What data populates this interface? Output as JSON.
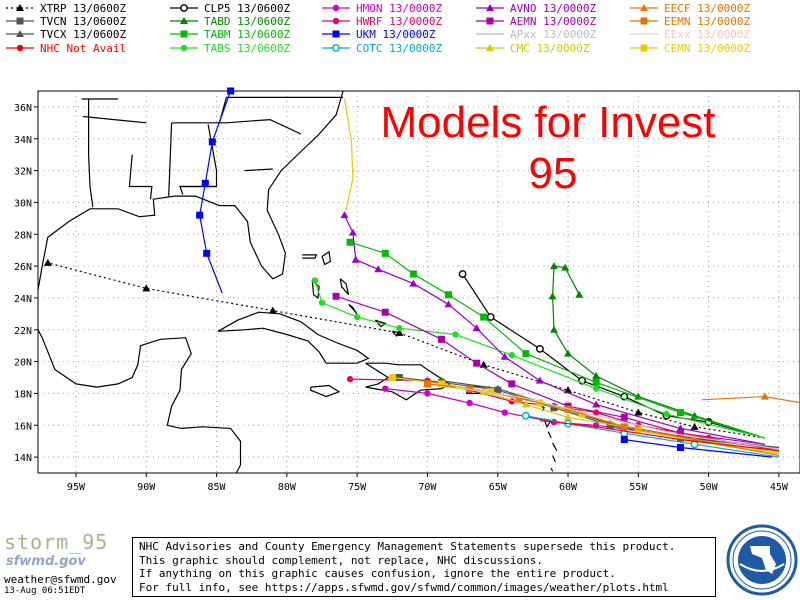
{
  "title_line1": "Models for Invest",
  "title_line2": "95",
  "legend": [
    {
      "label": "XTRP  13/0600Z",
      "color": "#000000",
      "dash": "2,3",
      "marker": "triangle"
    },
    {
      "label": "CLP5  13/0600Z",
      "color": "#000000",
      "dash": "",
      "marker": "ring"
    },
    {
      "label": "HMON  13/0000Z",
      "color": "#cc00cc",
      "dash": "",
      "marker": "circle"
    },
    {
      "label": "AVNO  13/0000Z",
      "color": "#9900cc",
      "dash": "",
      "marker": "triangle"
    },
    {
      "label": "EECF  13/0000Z",
      "color": "#e87400",
      "dash": "",
      "marker": "triangle"
    },
    {
      "label": "TVCN  13/0600Z",
      "color": "#555555",
      "dash": "",
      "marker": "square"
    },
    {
      "label": "TABD  13/0600Z",
      "color": "#008800",
      "dash": "",
      "marker": "triangle"
    },
    {
      "label": "HWRF  13/0000Z",
      "color": "#ee0066",
      "dash": "",
      "marker": "circle"
    },
    {
      "label": "AEMN  13/0000Z",
      "color": "#aa00aa",
      "dash": "",
      "marker": "square"
    },
    {
      "label": "EEMN  13/0000Z",
      "color": "#e87400",
      "dash": "",
      "marker": "square"
    },
    {
      "label": "TVCX  13/0600Z",
      "color": "#555555",
      "dash": "",
      "marker": "triangle"
    },
    {
      "label": "TABM  13/0600Z",
      "color": "#00bb00",
      "dash": "",
      "marker": "square"
    },
    {
      "label": "UKM   13/0000Z",
      "color": "#0000ff",
      "dash": "",
      "marker": "square"
    },
    {
      "label": "APxx  13/0000Z",
      "color": "#bbbbbb",
      "dash": "",
      "marker": "none"
    },
    {
      "label": "EExx  13/0000Z",
      "color": "#f5c6c6",
      "dash": "",
      "marker": "none"
    },
    {
      "label": "NHC Not Avail",
      "color": "#ff0000",
      "dash": "",
      "marker": "circle"
    },
    {
      "label": "TABS  13/0600Z",
      "color": "#22dd22",
      "dash": "",
      "marker": "circle"
    },
    {
      "label": "COTC  13/0000Z",
      "color": "#00aacc",
      "dash": "",
      "marker": "ring"
    },
    {
      "label": "CMC   13/0000Z",
      "color": "#cccc00",
      "dash": "",
      "marker": "triangle"
    },
    {
      "label": "CEMN  13/0000Z",
      "color": "#eecc00",
      "dash": "",
      "marker": "square"
    }
  ],
  "axes": {
    "lat_labels": [
      "14N",
      "16N",
      "18N",
      "20N",
      "22N",
      "24N",
      "26N",
      "28N",
      "30N",
      "32N",
      "34N",
      "36N"
    ],
    "lat_values": [
      14,
      16,
      18,
      20,
      22,
      24,
      26,
      28,
      30,
      32,
      34,
      36
    ],
    "lon_labels": [
      "95W",
      "90W",
      "85W",
      "80W",
      "75W",
      "70W",
      "65W",
      "60W",
      "55W",
      "50W",
      "45W"
    ],
    "lon_values": [
      -95,
      -90,
      -85,
      -80,
      -75,
      -70,
      -65,
      -60,
      -55,
      -50,
      -45
    ],
    "lat_range": [
      13,
      37
    ],
    "lon_range": [
      -97.7,
      -43.5
    ]
  },
  "tracks": [
    {
      "name": "XTRP",
      "color": "#000000",
      "dash": "2,3",
      "marker": "triangle",
      "points": [
        [
          -46,
          15.2
        ],
        [
          -51,
          15.9
        ],
        [
          -55,
          16.8
        ],
        [
          -60,
          18.2
        ],
        [
          -66,
          19.8
        ],
        [
          -72,
          21.8
        ],
        [
          -81,
          23.2
        ],
        [
          -90,
          24.6
        ],
        [
          -97,
          26.2
        ]
      ]
    },
    {
      "name": "CLP5",
      "color": "#000000",
      "dash": "",
      "marker": "ring",
      "points": [
        [
          -46,
          15.2
        ],
        [
          -50,
          16.2
        ],
        [
          -53,
          16.6
        ],
        [
          -56,
          17.8
        ],
        [
          -59,
          18.8
        ],
        [
          -62,
          20.8
        ],
        [
          -65.5,
          22.8
        ],
        [
          -67.5,
          25.5
        ]
      ]
    },
    {
      "name": "TABD",
      "color": "#008800",
      "dash": "",
      "marker": "triangle",
      "points": [
        [
          -46,
          15.2
        ],
        [
          -51,
          16.6
        ],
        [
          -55,
          17.8
        ],
        [
          -58,
          19.1
        ],
        [
          -60,
          20.5
        ],
        [
          -61,
          22
        ],
        [
          -61.1,
          24.1
        ],
        [
          -61,
          26
        ],
        [
          -60.2,
          25.9
        ],
        [
          -59.2,
          24.2
        ]
      ]
    },
    {
      "name": "TABM",
      "color": "#00bb00",
      "dash": "",
      "marker": "square",
      "points": [
        [
          -46,
          15.2
        ],
        [
          -52,
          16.8
        ],
        [
          -58,
          18.7
        ],
        [
          -63,
          20.5
        ],
        [
          -66,
          22.8
        ],
        [
          -68.5,
          24.2
        ],
        [
          -71,
          25.5
        ],
        [
          -73,
          26.8
        ],
        [
          -75.5,
          27.5
        ]
      ]
    },
    {
      "name": "TABS",
      "color": "#22dd22",
      "dash": "",
      "marker": "circle",
      "points": [
        [
          -46,
          15.2
        ],
        [
          -53,
          16.7
        ],
        [
          -58,
          18.3
        ],
        [
          -64,
          20.4
        ],
        [
          -68,
          21.7
        ],
        [
          -72,
          22.1
        ],
        [
          -75,
          22.8
        ],
        [
          -77.5,
          23.7
        ],
        [
          -78,
          25.1
        ]
      ]
    },
    {
      "name": "AVNO",
      "color": "#9900cc",
      "dash": "",
      "marker": "triangle",
      "points": [
        [
          -46,
          14.8
        ],
        [
          -52,
          15.8
        ],
        [
          -58,
          17.3
        ],
        [
          -62,
          18.8
        ],
        [
          -64.5,
          20.3
        ],
        [
          -66.5,
          22.1
        ],
        [
          -68.5,
          23.6
        ],
        [
          -71,
          24.9
        ],
        [
          -73.5,
          25.8
        ],
        [
          -75.1,
          26.4
        ],
        [
          -75.3,
          28.1
        ],
        [
          -75.9,
          29.2
        ]
      ]
    },
    {
      "name": "AEMN",
      "color": "#aa00aa",
      "dash": "",
      "marker": "square",
      "points": [
        [
          -46,
          14.8
        ],
        [
          -52,
          15.5
        ],
        [
          -56,
          16.5
        ],
        [
          -60,
          17.2
        ],
        [
          -64,
          18.6
        ],
        [
          -66.5,
          19.9
        ],
        [
          -69,
          21.4
        ],
        [
          -73,
          23.1
        ],
        [
          -76.5,
          24.1
        ]
      ]
    },
    {
      "name": "HWRF",
      "color": "#ee0066",
      "dash": "",
      "marker": "circle",
      "points": [
        [
          -45,
          14.4
        ],
        [
          -50,
          15.2
        ],
        [
          -55,
          16
        ],
        [
          -58,
          16.8
        ],
        [
          -61,
          17.2
        ],
        [
          -64,
          17.5
        ],
        [
          -67,
          18.2
        ],
        [
          -70,
          18.8
        ],
        [
          -75.5,
          18.9
        ]
      ]
    },
    {
      "name": "HMON",
      "color": "#cc00cc",
      "dash": "",
      "marker": "circle",
      "points": [
        [
          -45,
          14.5
        ],
        [
          -52,
          15.3
        ],
        [
          -58,
          16
        ],
        [
          -61,
          16.2
        ],
        [
          -64.5,
          16.8
        ],
        [
          -67,
          17.4
        ],
        [
          -70,
          18
        ],
        [
          -73,
          18.3
        ]
      ]
    },
    {
      "name": "TVCN",
      "color": "#555555",
      "dash": "",
      "marker": "square",
      "points": [
        [
          -45,
          14.6
        ],
        [
          -52,
          15.2
        ],
        [
          -57,
          16
        ],
        [
          -61,
          17.1
        ],
        [
          -65,
          18.2
        ],
        [
          -69,
          18.7
        ],
        [
          -72,
          19
        ]
      ]
    },
    {
      "name": "TVCX",
      "color": "#555555",
      "dash": "",
      "marker": "triangle",
      "points": [
        [
          -45,
          14.6
        ],
        [
          -52,
          15.3
        ],
        [
          -57,
          16.1
        ],
        [
          -61,
          17.2
        ],
        [
          -65,
          18.3
        ],
        [
          -69,
          18.8
        ]
      ]
    },
    {
      "name": "CMC",
      "color": "#cccc00",
      "dash": "",
      "marker": "triangle",
      "points": [
        [
          -45,
          14.3
        ],
        [
          -51,
          15.1
        ],
        [
          -56,
          15.9
        ],
        [
          -60,
          16.5
        ],
        [
          -63,
          17.3
        ],
        [
          -66,
          18.1
        ],
        [
          -70,
          18.6
        ]
      ]
    },
    {
      "name": "CEMN",
      "color": "#eecc00",
      "dash": "",
      "marker": "square",
      "points": [
        [
          -45,
          14.2
        ],
        [
          -51,
          15
        ],
        [
          -55,
          15.7
        ],
        [
          -59,
          16.7
        ],
        [
          -62,
          17.4
        ],
        [
          -65.5,
          18.1
        ],
        [
          -69,
          18.6
        ],
        [
          -72.5,
          19
        ]
      ]
    },
    {
      "name": "EEMN",
      "color": "#e87400",
      "dash": "",
      "marker": "square",
      "points": [
        [
          -45,
          14.1
        ],
        [
          -51,
          15.1
        ],
        [
          -56,
          15.9
        ],
        [
          -60,
          17
        ],
        [
          -63.5,
          17.7
        ],
        [
          -67,
          18.3
        ],
        [
          -70,
          18.6
        ]
      ]
    },
    {
      "name": "COTC",
      "color": "#00aacc",
      "dash": "",
      "marker": "ring",
      "points": [
        [
          -45,
          14
        ],
        [
          -51,
          14.8
        ],
        [
          -56,
          15.5
        ],
        [
          -60,
          16.1
        ],
        [
          -63,
          16.6
        ]
      ]
    },
    {
      "name": "UKM",
      "color": "#0000ff",
      "dash": "",
      "marker": "square",
      "points": [
        [
          -45.5,
          14
        ],
        [
          -52,
          14.6
        ],
        [
          -56,
          15.1
        ]
      ]
    },
    {
      "name": "UKM-north",
      "color": "#0000ff",
      "dash": "",
      "marker": "square",
      "points": [
        [
          -84.6,
          24.3
        ],
        [
          -85.7,
          26.8
        ],
        [
          -86.2,
          29.2
        ],
        [
          -85.8,
          31.2
        ],
        [
          -85.3,
          33.8
        ],
        [
          -84,
          37
        ]
      ]
    },
    {
      "name": "EECF",
      "color": "#e87400",
      "dash": "",
      "marker": "triangle",
      "points": [
        [
          -50.5,
          17.6
        ],
        [
          -46,
          17.8
        ],
        [
          -42,
          17.2
        ]
      ]
    },
    {
      "name": "APxx",
      "color": "#cccccc",
      "dash": "",
      "marker": "none",
      "points": [
        [
          -45,
          14.5
        ],
        [
          -52,
          15.4
        ],
        [
          -58,
          16.6
        ],
        [
          -63,
          17.7
        ],
        [
          -68,
          18.4
        ]
      ]
    },
    {
      "name": "NHC",
      "color": "#ff0000",
      "dash": "",
      "marker": "none",
      "points": [
        [
          -45,
          14.4
        ],
        [
          -52,
          15.1
        ],
        [
          -58,
          15.9
        ],
        [
          -62,
          16.3
        ]
      ]
    },
    {
      "name": "TABM-north",
      "color": "#ddcc00",
      "dash": "",
      "marker": "none",
      "points": [
        [
          -75.8,
          29.5
        ],
        [
          -75.3,
          31.5
        ],
        [
          -75.4,
          33.8
        ],
        [
          -75.9,
          36.5
        ]
      ]
    }
  ],
  "footer": {
    "storm_tag": "storm_95",
    "logo_text": "sfwmd.gov",
    "email": "weather@sfwmd.gov",
    "timestamp": "13-Aug 06:51EDT",
    "disclaimer": [
      "NHC Advisories and County Emergency Management Statements supersede this product.",
      "This graphic should complement, not replace, NHC discussions.",
      "If anything on this graphic causes confusion, ignore the entire product.",
      "For full info, see  https://apps.sfwmd.gov/sfwmd/common/images/weather/plots.html"
    ]
  },
  "colors": {
    "title": "#ff0000",
    "coast": "#000000",
    "grid": "#b0b0b0",
    "seal_blue": "#1f5aa6"
  }
}
